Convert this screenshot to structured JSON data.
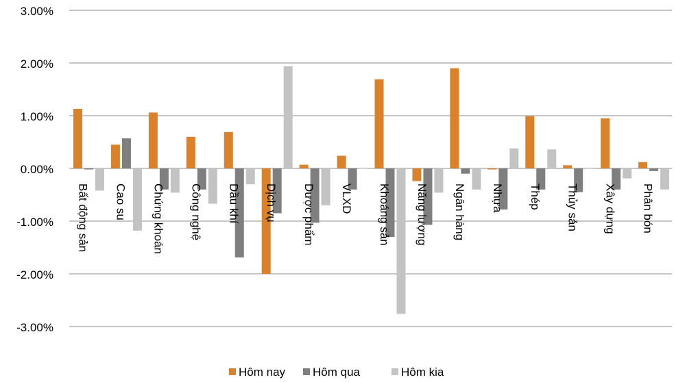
{
  "chart_data": {
    "type": "bar",
    "categories": [
      "Bất động sản",
      "Cao su",
      "Chứng khoán",
      "Công nghệ",
      "Dầu khí",
      "Dịch vụ",
      "Dược phẩm",
      "VLXD",
      "Khoáng sản",
      "Năng lượng",
      "Ngân hàng",
      "Nhựa",
      "Thép",
      "Thủy sản",
      "Xây dựng",
      "Phân bón"
    ],
    "series": [
      {
        "name": "Hôm nay",
        "color": "#d9822b",
        "values": [
          1.13,
          0.45,
          1.06,
          0.6,
          0.69,
          -2.0,
          0.07,
          0.24,
          1.69,
          -0.24,
          1.9,
          -0.02,
          0.99,
          0.06,
          0.95,
          0.12
        ]
      },
      {
        "name": "Hôm qua",
        "color": "#7f7f7f",
        "values": [
          -0.02,
          0.57,
          -0.4,
          -0.4,
          -1.69,
          -0.85,
          -1.03,
          -0.4,
          -1.3,
          -1.07,
          -0.1,
          -0.78,
          -0.4,
          -0.45,
          -0.4,
          -0.05
        ]
      },
      {
        "name": "Hôm kia",
        "color": "#c3c3c3",
        "values": [
          -0.42,
          -1.18,
          -0.46,
          -0.67,
          -0.3,
          1.94,
          -0.7,
          0.0,
          -2.76,
          -0.46,
          -0.4,
          0.38,
          0.36,
          0.0,
          -0.19,
          -0.4
        ]
      }
    ],
    "yticks": [
      "3.00%",
      "2.00%",
      "1.00%",
      "0.00%",
      "-1.00%",
      "-2.00%",
      "-3.00%"
    ],
    "ylim": [
      -3,
      3
    ],
    "grid": true,
    "legend": "bottom"
  }
}
